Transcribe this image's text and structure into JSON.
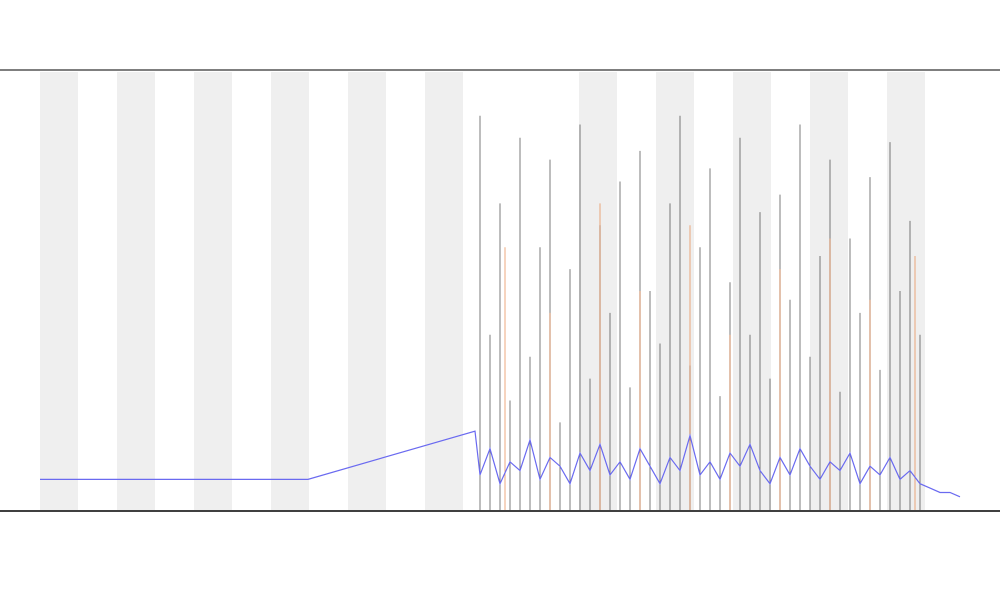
{
  "chart_data": {
    "type": "line",
    "xlim": [
      0,
      100
    ],
    "ylim": [
      0,
      100
    ],
    "series": [
      {
        "kind": "spike",
        "color": "#444444",
        "x": [
          48,
          49,
          50,
          51,
          52,
          53,
          54,
          55,
          56,
          57,
          58,
          59,
          60,
          61,
          62,
          63,
          64,
          65,
          66,
          67,
          68,
          69,
          70,
          71,
          72,
          73,
          74,
          75,
          76,
          77,
          78,
          79,
          80,
          81,
          82,
          83,
          84,
          85,
          86,
          87,
          88,
          89,
          90,
          91,
          92
        ],
        "values": [
          90,
          40,
          70,
          25,
          85,
          35,
          60,
          80,
          20,
          55,
          88,
          30,
          65,
          45,
          75,
          28,
          82,
          50,
          38,
          70,
          90,
          33,
          60,
          78,
          26,
          52,
          85,
          40,
          68,
          30,
          72,
          48,
          88,
          35,
          58,
          80,
          27,
          62,
          45,
          76,
          32,
          84,
          50,
          66,
          40
        ]
      },
      {
        "kind": "spike",
        "color": "#e8874a",
        "x": [
          50.5,
          55,
          60,
          64,
          69,
          73,
          78,
          83,
          87,
          91.5
        ],
        "values": [
          60,
          45,
          70,
          50,
          65,
          40,
          55,
          62,
          48,
          58
        ]
      },
      {
        "kind": "line",
        "color": "#6a6af0",
        "x": [
          4,
          30.8,
          47.5,
          48,
          49,
          50,
          51,
          52,
          53,
          54,
          55,
          56,
          57,
          58,
          59,
          60,
          61,
          62,
          63,
          64,
          65,
          66,
          67,
          68,
          69,
          70,
          71,
          72,
          73,
          74,
          75,
          76,
          77,
          78,
          79,
          80,
          81,
          82,
          83,
          84,
          85,
          86,
          87,
          88,
          89,
          90,
          91,
          92,
          93,
          94,
          95,
          96
        ],
        "values": [
          7,
          7,
          18,
          8,
          14,
          6,
          11,
          9,
          16,
          7,
          12,
          10,
          6,
          13,
          9,
          15,
          8,
          11,
          7,
          14,
          10,
          6,
          12,
          9,
          17,
          8,
          11,
          7,
          13,
          10,
          15,
          9,
          6,
          12,
          8,
          14,
          10,
          7,
          11,
          9,
          13,
          6,
          10,
          8,
          12,
          7,
          9,
          6,
          5,
          4,
          4,
          3
        ]
      }
    ]
  }
}
